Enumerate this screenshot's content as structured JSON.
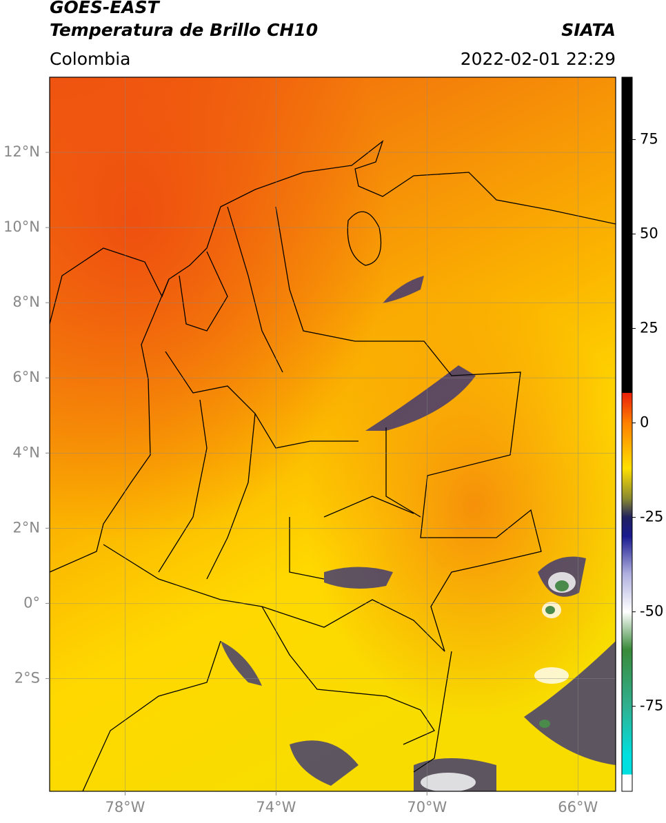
{
  "header": {
    "title": "GOES-EAST",
    "subtitle": "Temperatura de Brillo CH10",
    "source": "SIATA",
    "region": "Colombia",
    "datetime": "2022-02-01 22:29"
  },
  "map": {
    "lonlim": [
      -80,
      -65
    ],
    "latlim": [
      -5,
      14
    ],
    "lonticks": [
      {
        "value": -78,
        "label": "78°W"
      },
      {
        "value": -74,
        "label": "74°W"
      },
      {
        "value": -70,
        "label": "70°W"
      },
      {
        "value": -66,
        "label": "66°W"
      }
    ],
    "latticks": [
      {
        "value": 12,
        "label": "12°N"
      },
      {
        "value": 10,
        "label": "10°N"
      },
      {
        "value": 8,
        "label": "8°N"
      },
      {
        "value": 6,
        "label": "6°N"
      },
      {
        "value": 4,
        "label": "4°N"
      },
      {
        "value": 2,
        "label": "2°N"
      },
      {
        "value": 0,
        "label": "0°"
      },
      {
        "value": -2,
        "label": "2°S"
      }
    ],
    "grid": true
  },
  "colorbar": {
    "lim": [
      -97.5,
      91.5
    ],
    "ticks": [
      75,
      50,
      25,
      0,
      -25,
      -50,
      -75
    ],
    "stops": [
      {
        "value": 91.5,
        "color": "#000000"
      },
      {
        "value": 8,
        "color": "#000000"
      },
      {
        "value": 7.9,
        "color": "#e8200a"
      },
      {
        "value": 0,
        "color": "#ff8000"
      },
      {
        "value": -12,
        "color": "#ffe000"
      },
      {
        "value": -20,
        "color": "#8a8a30"
      },
      {
        "value": -25,
        "color": "#202060"
      },
      {
        "value": -30,
        "color": "#1a1a90"
      },
      {
        "value": -40,
        "color": "#b0b0e0"
      },
      {
        "value": -50,
        "color": "#ffffff"
      },
      {
        "value": -60,
        "color": "#3a8a3a"
      },
      {
        "value": -75,
        "color": "#30b090"
      },
      {
        "value": -88,
        "color": "#00e0e0"
      },
      {
        "value": -93,
        "color": "#00e0e0"
      },
      {
        "value": -93.1,
        "color": "#ffffff"
      },
      {
        "value": -97.5,
        "color": "#ffffff"
      }
    ]
  }
}
